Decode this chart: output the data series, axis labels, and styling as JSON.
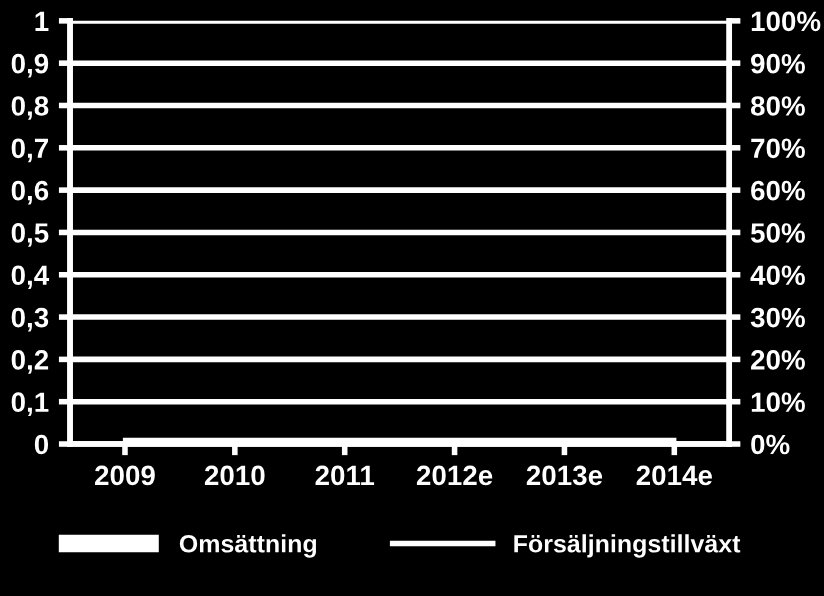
{
  "chart_data": {
    "type": "bar",
    "categories": [
      "2009",
      "2010",
      "2011",
      "2012e",
      "2013e",
      "2014e"
    ],
    "series": [
      {
        "name": "Omsättning",
        "color": "#ffffff",
        "values": [
          0,
          0,
          0,
          0,
          0,
          0
        ]
      },
      {
        "name": "Försäljningstillväxt",
        "type": "line",
        "axis": "y2",
        "color": "#ffffff",
        "values": [
          1,
          1,
          1,
          1,
          1,
          1
        ]
      }
    ],
    "ylim": [
      0,
      1
    ],
    "yticks": [
      0,
      {
        "value": 0.1,
        "label": "0,1"
      },
      {
        "value": 0.2,
        "label": "0,2"
      },
      {
        "value": 0.3,
        "label": "0,3"
      },
      {
        "value": 0.4,
        "label": "0,4"
      },
      {
        "value": 0.5,
        "label": "0,5"
      },
      {
        "value": 0.6,
        "label": "0,6"
      },
      {
        "value": 0.7,
        "label": "0,7"
      },
      {
        "value": 0.8,
        "label": "0,8"
      },
      {
        "value": 0.9,
        "label": "0,9"
      },
      1
    ],
    "y2lim": [
      0,
      100
    ],
    "y2ticks": [
      {
        "value": 0,
        "label": "0%"
      },
      {
        "value": 10,
        "label": "10%"
      },
      {
        "value": 20,
        "label": "20%"
      },
      {
        "value": 30,
        "label": "30%"
      },
      {
        "value": 40,
        "label": "40%"
      },
      {
        "value": 50,
        "label": "50%"
      },
      {
        "value": 60,
        "label": "60%"
      },
      {
        "value": 70,
        "label": "70%"
      },
      {
        "value": 80,
        "label": "80%"
      },
      {
        "value": 90,
        "label": "90%"
      },
      {
        "value": 100,
        "label": "100%"
      }
    ],
    "grid": "y",
    "legend": "bottom"
  }
}
